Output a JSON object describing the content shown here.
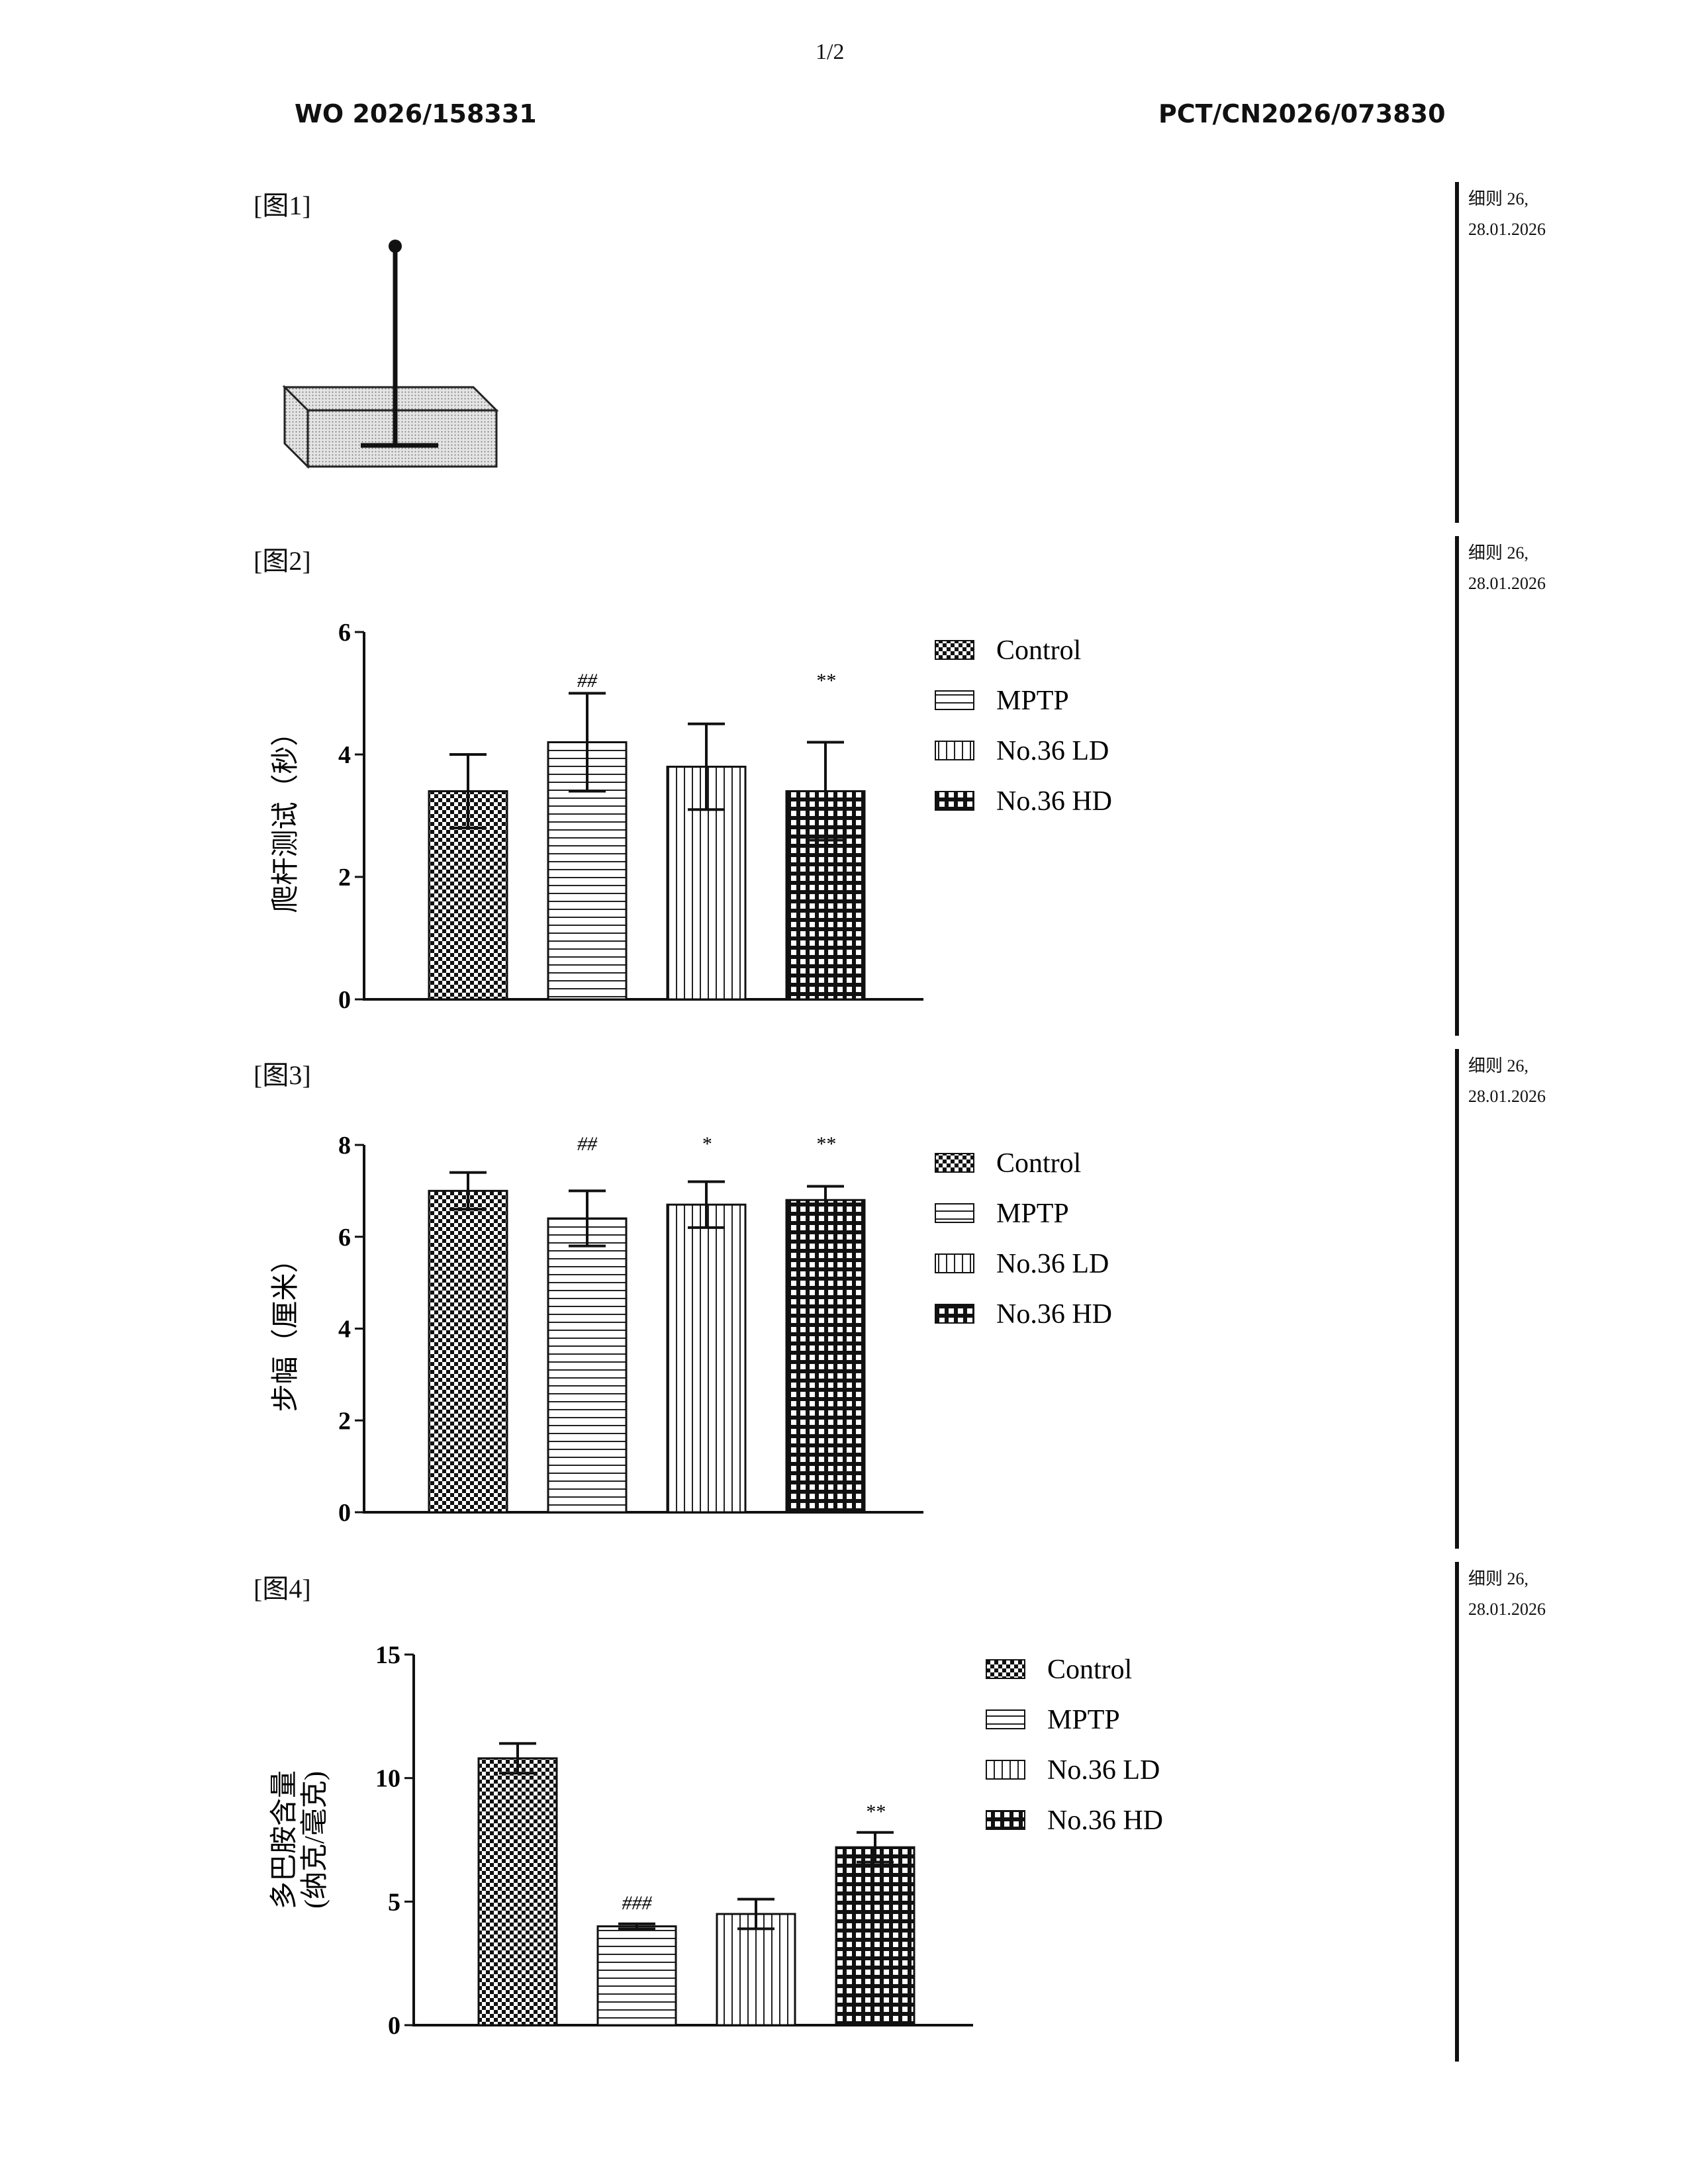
{
  "page_number": "1/2",
  "header": {
    "publication_number": "WO 2026/158331",
    "application_number": "PCT/CN2026/073830"
  },
  "side_note": {
    "line1": "细则 26,",
    "line2": "28.01.2026"
  },
  "figures": [
    {
      "label": "[图1]"
    },
    {
      "label": "[图2]"
    },
    {
      "label": "[图3]"
    },
    {
      "label": "[图4]"
    }
  ],
  "chart_data": [
    {
      "type": "bar",
      "categories": [
        "Control",
        "MPTP",
        "No.36 LD",
        "No.36 HD"
      ],
      "values": [
        3.4,
        4.2,
        3.8,
        3.4
      ],
      "errors": [
        0.6,
        0.8,
        0.7,
        0.8
      ],
      "annotations": [
        "",
        "##",
        "",
        "**"
      ],
      "ylabel": "爬杆测试（秒）",
      "ylim": [
        0,
        6
      ],
      "yticks": [
        0,
        2,
        4,
        6
      ],
      "legend": [
        "Control",
        "MPTP",
        "No.36 LD",
        "No.36 HD"
      ],
      "legend_placement": "right"
    },
    {
      "type": "bar",
      "categories": [
        "Control",
        "MPTP",
        "No.36 LD",
        "No.36 HD"
      ],
      "values": [
        7.0,
        6.4,
        6.7,
        6.8
      ],
      "errors": [
        0.4,
        0.6,
        0.5,
        0.3
      ],
      "annotations": [
        "",
        "##",
        "*",
        "**"
      ],
      "ylabel": "步幅（厘米）",
      "ylim": [
        0,
        8
      ],
      "yticks": [
        0,
        2,
        4,
        6,
        8
      ],
      "legend": [
        "Control",
        "MPTP",
        "No.36 LD",
        "No.36 HD"
      ],
      "legend_placement": "right"
    },
    {
      "type": "bar",
      "categories": [
        "Control",
        "MPTP",
        "No.36 LD",
        "No.36 HD"
      ],
      "values": [
        10.8,
        4.0,
        4.5,
        7.2
      ],
      "errors": [
        0.6,
        0.1,
        0.6,
        0.6
      ],
      "annotations": [
        "",
        "###",
        "",
        "**"
      ],
      "ylabel": "多巴胺含量",
      "ylabel2": "(纳克/毫克)",
      "ylim": [
        0,
        15
      ],
      "yticks": [
        0,
        5,
        10,
        15
      ],
      "legend": [
        "Control",
        "MPTP",
        "No.36 LD",
        "No.36 HD"
      ],
      "legend_placement": "right"
    }
  ]
}
